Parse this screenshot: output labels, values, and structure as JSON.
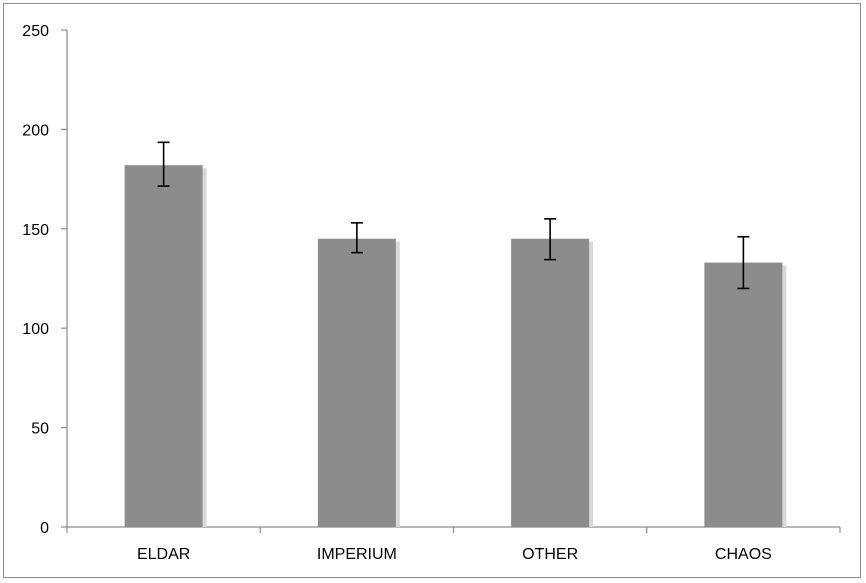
{
  "chart_data": {
    "type": "bar",
    "categories": [
      "ELDAR",
      "IMPERIUM",
      "OTHER",
      "CHAOS"
    ],
    "series": [
      {
        "values": [
          182,
          145,
          145,
          133
        ],
        "error_low": [
          171.5,
          138,
          134.5,
          120
        ],
        "error_high": [
          193.5,
          153,
          155,
          146
        ]
      }
    ],
    "ylim": [
      0,
      250
    ],
    "yticks": [
      0,
      50,
      100,
      150,
      200,
      250
    ],
    "ytick_labels": [
      "0",
      "50",
      "100",
      "150",
      "200",
      "250"
    ],
    "title": "",
    "xlabel": "",
    "ylabel": "",
    "grid": false,
    "legend": "none",
    "colors": {
      "bar": "#8c8c8c",
      "bar_shadow": "#d9d9d9",
      "axis": "#8c8c8c",
      "error_bar": "#000000"
    }
  }
}
